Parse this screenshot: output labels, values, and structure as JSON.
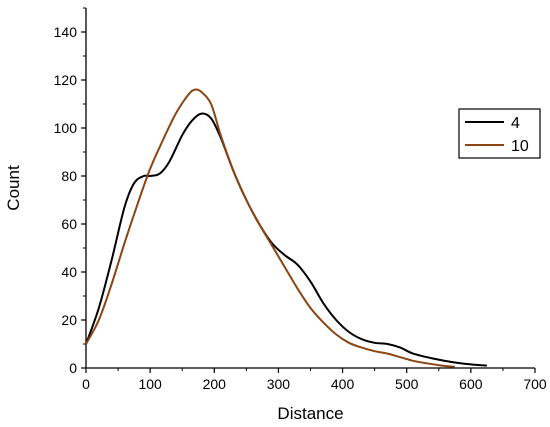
{
  "chart_data": {
    "type": "line",
    "title": "",
    "xlabel": "Distance",
    "ylabel": "Count",
    "xlim": [
      0,
      700
    ],
    "ylim": [
      0,
      150
    ],
    "xticks": [
      0,
      100,
      200,
      300,
      400,
      500,
      600,
      700
    ],
    "yticks": [
      0,
      20,
      40,
      60,
      80,
      100,
      120,
      140
    ],
    "grid": false,
    "legend_position": "right",
    "series": [
      {
        "name": "4",
        "color": "#000000",
        "points": [
          [
            0,
            10
          ],
          [
            20,
            25
          ],
          [
            40,
            45
          ],
          [
            60,
            67
          ],
          [
            75,
            77
          ],
          [
            90,
            80
          ],
          [
            100,
            80
          ],
          [
            115,
            81
          ],
          [
            130,
            86
          ],
          [
            150,
            97
          ],
          [
            165,
            103
          ],
          [
            180,
            106
          ],
          [
            195,
            104
          ],
          [
            210,
            96
          ],
          [
            230,
            82
          ],
          [
            250,
            70
          ],
          [
            270,
            60
          ],
          [
            290,
            52
          ],
          [
            310,
            47
          ],
          [
            330,
            43
          ],
          [
            350,
            36
          ],
          [
            370,
            27
          ],
          [
            390,
            20
          ],
          [
            410,
            15
          ],
          [
            430,
            12
          ],
          [
            450,
            10.5
          ],
          [
            470,
            10
          ],
          [
            490,
            8.5
          ],
          [
            510,
            6
          ],
          [
            540,
            4
          ],
          [
            570,
            2.5
          ],
          [
            600,
            1.5
          ],
          [
            625,
            1
          ]
        ]
      },
      {
        "name": "10",
        "color": "#8b4513",
        "points": [
          [
            0,
            10
          ],
          [
            20,
            20
          ],
          [
            40,
            35
          ],
          [
            60,
            52
          ],
          [
            80,
            68
          ],
          [
            100,
            83
          ],
          [
            120,
            95
          ],
          [
            140,
            106
          ],
          [
            160,
            114
          ],
          [
            170,
            116
          ],
          [
            180,
            115
          ],
          [
            195,
            110
          ],
          [
            210,
            97
          ],
          [
            230,
            82
          ],
          [
            250,
            70
          ],
          [
            270,
            60
          ],
          [
            290,
            51
          ],
          [
            310,
            42
          ],
          [
            330,
            33
          ],
          [
            350,
            25
          ],
          [
            370,
            19
          ],
          [
            390,
            14
          ],
          [
            410,
            10.5
          ],
          [
            430,
            8.5
          ],
          [
            450,
            7
          ],
          [
            470,
            6
          ],
          [
            490,
            4.5
          ],
          [
            510,
            3
          ],
          [
            530,
            2
          ],
          [
            555,
            1
          ],
          [
            575,
            0.5
          ]
        ]
      }
    ]
  }
}
